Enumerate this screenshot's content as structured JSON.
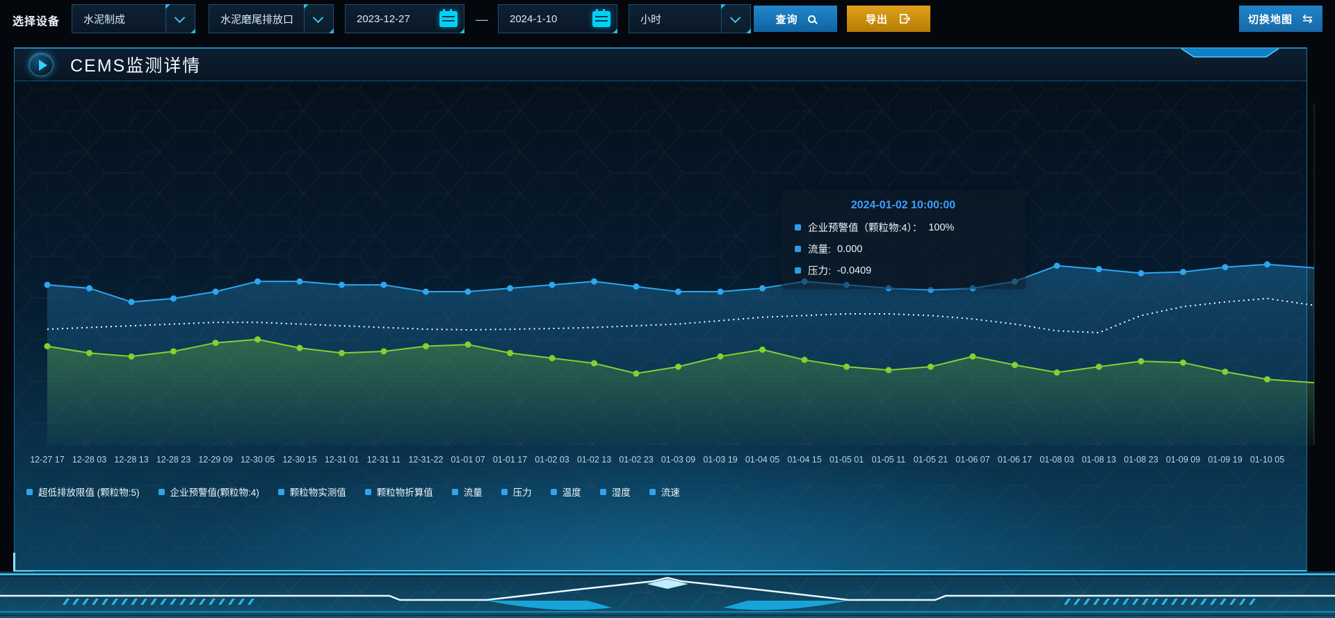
{
  "toolbar": {
    "device_label": "选择设备",
    "device_select": {
      "value": "水泥制成"
    },
    "outlet_select": {
      "value": "水泥磨尾排放口"
    },
    "date_start": "2023-12-27",
    "date_separator": "—",
    "date_end": "2024-1-10",
    "interval_select": {
      "value": "小时"
    },
    "query_label": "查询",
    "export_label": "导出",
    "switch_map_label": "切换地图",
    "switch_map_glyph": "⇆"
  },
  "panel": {
    "title": "CEMS监测详情"
  },
  "tooltip": {
    "title": "2024-01-02 10:00:00",
    "title_color": "#3f9ffc",
    "marker_color": "#2d9ce8",
    "items": [
      {
        "label": "企业预警值（颗粒物:4）：",
        "value": "100%"
      },
      {
        "label": "流量:",
        "value": "0.000"
      },
      {
        "label": "压力:",
        "value": "-0.0409"
      }
    ]
  },
  "legend": {
    "marker_color": "#31a3e8",
    "items": [
      "超低排放限值 (颗粒物:5)",
      "企业预警值(颗粒物:4)",
      "颗粒物实测值",
      "颗粒物折算值",
      "流量",
      "压力",
      "温度",
      "湿度",
      "流速"
    ]
  },
  "chart_data": {
    "type": "line",
    "title": "",
    "xlabel": "",
    "ylabel": "",
    "ylim": [
      0,
      100
    ],
    "grid": true,
    "legend_position": "bottom",
    "x": [
      "12-27 17",
      "12-28 03",
      "12-28 13",
      "12-28 23",
      "12-29 09",
      "12-30 05",
      "12-30 15",
      "12-31 01",
      "12-31 11",
      "12-31-22",
      "01-01 07",
      "01-01 17",
      "01-02 03",
      "01-02 13",
      "01-02 23",
      "01-03 09",
      "01-03 19",
      "01-04 05",
      "01-04 15",
      "01-05 01",
      "01-05 11",
      "01-05 21",
      "01-06 07",
      "01-06 17",
      "01-08 03",
      "01-08 13",
      "01-08 23",
      "01-09 09",
      "01-09 19",
      "01-10 05"
    ],
    "series": [
      {
        "name": "流量",
        "color": "#2da7f0",
        "line_style": "solid",
        "markers": true,
        "area": true,
        "values": [
          47,
          46,
          42,
          43,
          45,
          48,
          48,
          47,
          47,
          45,
          45,
          46,
          47,
          48,
          46.5,
          45,
          45,
          46,
          48,
          47,
          46,
          45.5,
          46,
          48,
          52.6,
          51.6,
          50.4,
          50.8,
          52.2,
          53
        ],
        "edge_value": 52
      },
      {
        "name": "企业预警值(颗粒物:4)",
        "color": "#ffffff",
        "line_style": "dotted",
        "markers": false,
        "area": false,
        "values": [
          34,
          34.5,
          35,
          35.5,
          36,
          36,
          35.5,
          35,
          34.5,
          34,
          33.8,
          34,
          34.2,
          34.5,
          35,
          35.5,
          36.5,
          37.5,
          38,
          38.5,
          38.5,
          38,
          37,
          35.5,
          33.5,
          33,
          38,
          40.6,
          42,
          43
        ],
        "edge_value": 41
      },
      {
        "name": "压力",
        "color": "#7fd331",
        "line_style": "solid",
        "markers": true,
        "area": true,
        "values": [
          29,
          27,
          26,
          27.5,
          30,
          31,
          28.5,
          27,
          27.5,
          29,
          29.5,
          27,
          25.5,
          24,
          21,
          23,
          26,
          28,
          25,
          23,
          22,
          23,
          26,
          23.5,
          21.3,
          23,
          24.6,
          24.2,
          21.5,
          19.3
        ],
        "edge_value": 18.3
      }
    ]
  }
}
